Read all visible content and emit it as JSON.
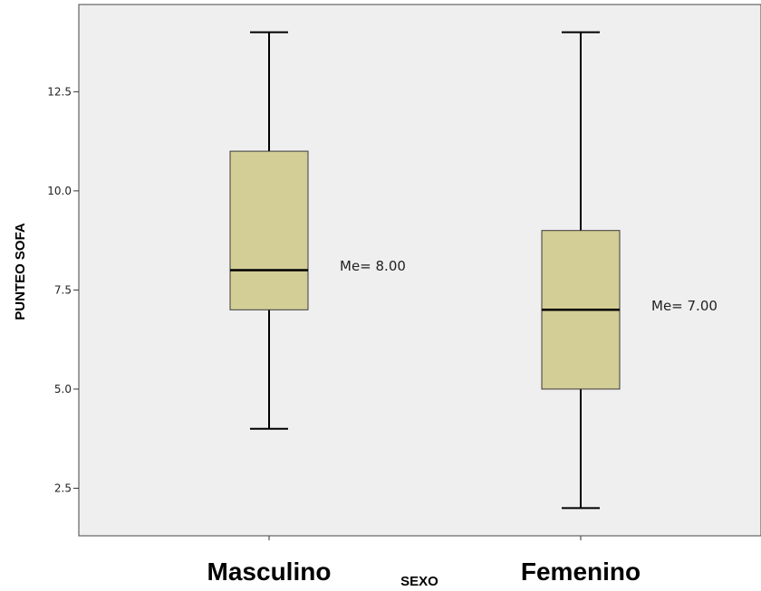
{
  "chart_data": {
    "type": "boxplot",
    "title": "",
    "xlabel": "SEXO",
    "ylabel": "PUNTEO SOFA",
    "ylim": [
      1.3,
      14.7
    ],
    "yticks": [
      2.5,
      5.0,
      7.5,
      10.0,
      12.5
    ],
    "ytick_labels": [
      "2.5",
      "5.0",
      "7.5",
      "10.0",
      "12.5"
    ],
    "grid": false,
    "categories": [
      "Masculino",
      "Femenino"
    ],
    "boxes": [
      {
        "category": "Masculino",
        "min": 4,
        "q1": 7,
        "median": 8,
        "q3": 11,
        "max": 14,
        "annotation": "Me= 8.00"
      },
      {
        "category": "Femenino",
        "min": 2,
        "q1": 5,
        "median": 7,
        "q3": 9,
        "max": 14,
        "annotation": "Me= 7.00"
      }
    ],
    "colors": {
      "plot_background": "#efefef",
      "box_fill": "#d3cd96",
      "line": "#000000"
    }
  }
}
